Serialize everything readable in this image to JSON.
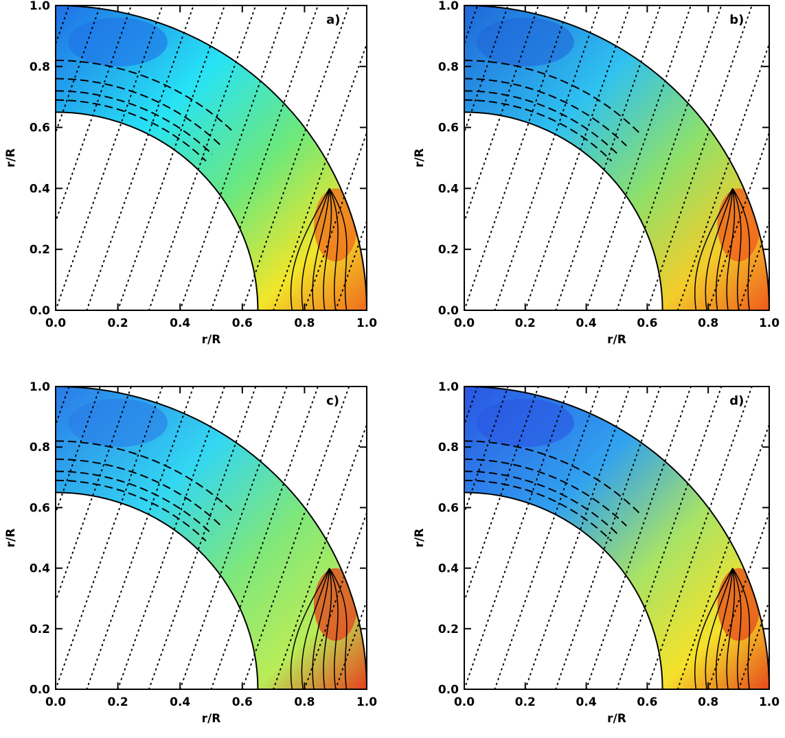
{
  "chart_data": [
    {
      "type": "heatmap",
      "panel_label": "a)",
      "xlabel": "r/R",
      "ylabel": "r/R",
      "xlim": [
        0,
        1
      ],
      "ylim": [
        0,
        1
      ],
      "xticks": [
        "0.0",
        "0.2",
        "0.4",
        "0.6",
        "0.8",
        "1.0"
      ],
      "yticks": [
        "0.0",
        "0.2",
        "0.4",
        "0.6",
        "0.8",
        "1.0"
      ],
      "inner_radius": 0.65,
      "outer_radius": 1.0,
      "colors": [
        "#1f6fe6",
        "#27e3f5",
        "#6ee87a",
        "#f2e62a",
        "#ef6a1c"
      ],
      "contours": "solid positive, dashed negative, dotted field lines"
    },
    {
      "type": "heatmap",
      "panel_label": "b)",
      "xlabel": "r/R",
      "ylabel": "r/R",
      "xlim": [
        0,
        1
      ],
      "ylim": [
        0,
        1
      ],
      "xticks": [
        "0.0",
        "0.2",
        "0.4",
        "0.6",
        "0.8",
        "1.0"
      ],
      "yticks": [
        "0.0",
        "0.2",
        "0.4",
        "0.6",
        "0.8",
        "1.0"
      ],
      "inner_radius": 0.65,
      "outer_radius": 1.0,
      "colors": [
        "#1f66d9",
        "#2fc1f0",
        "#8ee06a",
        "#f3cd2a",
        "#ef5a1c"
      ],
      "contours": "solid positive, dashed negative, dotted field lines"
    },
    {
      "type": "heatmap",
      "panel_label": "c)",
      "xlabel": "r/R",
      "ylabel": "r/R",
      "xlim": [
        0,
        1
      ],
      "ylim": [
        0,
        1
      ],
      "xticks": [
        "0.0",
        "0.2",
        "0.4",
        "0.6",
        "0.8",
        "1.0"
      ],
      "yticks": [
        "0.0",
        "0.2",
        "0.4",
        "0.6",
        "0.8",
        "1.0"
      ],
      "inner_radius": 0.65,
      "outer_radius": 1.0,
      "colors": [
        "#2a7ae8",
        "#33d7f2",
        "#7fe77a",
        "#b9ec58",
        "#e6421c"
      ],
      "contours": "solid positive, dashed negative, dotted field lines"
    },
    {
      "type": "heatmap",
      "panel_label": "d)",
      "xlabel": "r/R",
      "ylabel": "r/R",
      "xlim": [
        0,
        1
      ],
      "ylim": [
        0,
        1
      ],
      "xticks": [
        "0.0",
        "0.2",
        "0.4",
        "0.6",
        "0.8",
        "1.0"
      ],
      "yticks": [
        "0.0",
        "0.2",
        "0.4",
        "0.6",
        "0.8",
        "1.0"
      ],
      "inner_radius": 0.65,
      "outer_radius": 1.0,
      "colors": [
        "#2a55e3",
        "#31a2ef",
        "#a9e364",
        "#f5e12a",
        "#e64a1c"
      ],
      "contours": "solid positive, dashed negative, dotted field lines"
    }
  ]
}
